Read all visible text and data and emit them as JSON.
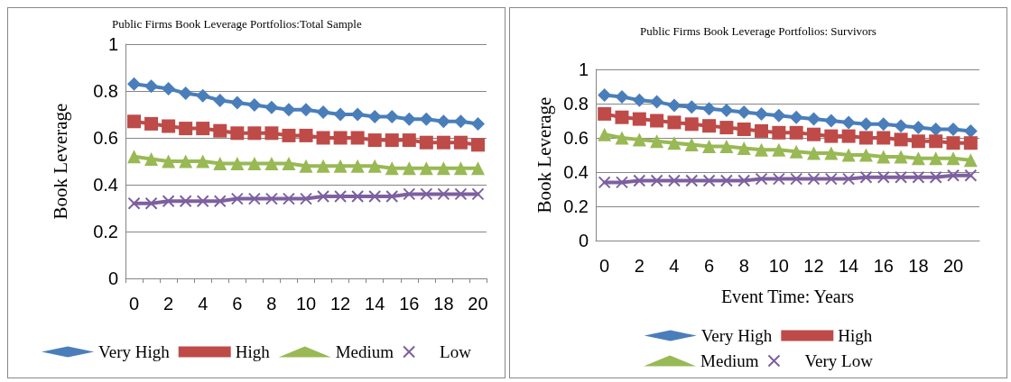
{
  "chart_data": [
    {
      "type": "line",
      "title": "Public Firms Book Leverage Portfolios:Total Sample",
      "ylabel": "Book Leverage",
      "categories": [
        "0",
        null,
        "2",
        null,
        "4",
        null,
        "6",
        null,
        "8",
        null,
        "10",
        null,
        "12",
        null,
        "14",
        null,
        "16",
        null,
        "18",
        null,
        "20"
      ],
      "ylim": [
        0,
        1
      ],
      "yticks": [
        0,
        0.2,
        0.4,
        0.6,
        0.8,
        1
      ],
      "grid": "y",
      "legend": "bottom",
      "series": [
        {
          "name": "Very High",
          "color": "#4a7ebb",
          "marker": "diamond",
          "values": [
            0.83,
            0.82,
            0.81,
            0.79,
            0.78,
            0.76,
            0.75,
            0.74,
            0.73,
            0.72,
            0.72,
            0.71,
            0.7,
            0.7,
            0.69,
            0.69,
            0.68,
            0.68,
            0.67,
            0.67,
            0.66
          ]
        },
        {
          "name": "High",
          "color": "#be4b48",
          "marker": "square",
          "values": [
            0.67,
            0.66,
            0.65,
            0.64,
            0.64,
            0.63,
            0.62,
            0.62,
            0.62,
            0.61,
            0.61,
            0.6,
            0.6,
            0.6,
            0.59,
            0.59,
            0.59,
            0.58,
            0.58,
            0.58,
            0.57
          ]
        },
        {
          "name": "Medium",
          "color": "#98b954",
          "marker": "triangle",
          "values": [
            0.52,
            0.51,
            0.5,
            0.5,
            0.5,
            0.49,
            0.49,
            0.49,
            0.49,
            0.49,
            0.48,
            0.48,
            0.48,
            0.48,
            0.48,
            0.47,
            0.47,
            0.47,
            0.47,
            0.47,
            0.47
          ]
        },
        {
          "name": "Low",
          "color": "#7d60a0",
          "marker": "cross",
          "values": [
            0.32,
            0.32,
            0.33,
            0.33,
            0.33,
            0.33,
            0.34,
            0.34,
            0.34,
            0.34,
            0.34,
            0.35,
            0.35,
            0.35,
            0.35,
            0.35,
            0.36,
            0.36,
            0.36,
            0.36,
            0.36
          ]
        }
      ]
    },
    {
      "type": "line",
      "title": "Public Firms Book Leverage Portfolios: Survivors",
      "ylabel": "Book Leverage",
      "xlabel": "Event Time: Years",
      "categories": [
        "0",
        null,
        "2",
        null,
        "4",
        null,
        "6",
        null,
        "8",
        null,
        "10",
        null,
        "12",
        null,
        "14",
        null,
        "16",
        null,
        "18",
        null,
        "20",
        null
      ],
      "ylim": [
        0,
        1
      ],
      "yticks": [
        0,
        0.2,
        0.4,
        0.6,
        0.8,
        1
      ],
      "grid": "y",
      "legend": "bottom",
      "series": [
        {
          "name": "Very High",
          "color": "#4a7ebb",
          "marker": "diamond",
          "values": [
            0.85,
            0.84,
            0.82,
            0.81,
            0.79,
            0.78,
            0.77,
            0.76,
            0.75,
            0.74,
            0.73,
            0.72,
            0.71,
            0.7,
            0.69,
            0.68,
            0.68,
            0.67,
            0.66,
            0.65,
            0.65,
            0.64
          ]
        },
        {
          "name": "High",
          "color": "#be4b48",
          "marker": "square",
          "values": [
            0.74,
            0.72,
            0.71,
            0.7,
            0.69,
            0.68,
            0.67,
            0.66,
            0.65,
            0.64,
            0.63,
            0.63,
            0.62,
            0.61,
            0.61,
            0.6,
            0.6,
            0.59,
            0.58,
            0.58,
            0.57,
            0.57
          ]
        },
        {
          "name": "Medium",
          "color": "#98b954",
          "marker": "triangle",
          "values": [
            0.62,
            0.6,
            0.59,
            0.58,
            0.57,
            0.56,
            0.55,
            0.55,
            0.54,
            0.53,
            0.53,
            0.52,
            0.51,
            0.51,
            0.5,
            0.5,
            0.49,
            0.49,
            0.48,
            0.48,
            0.48,
            0.47
          ]
        },
        {
          "name": "Very Low",
          "color": "#7d60a0",
          "marker": "cross",
          "values": [
            0.34,
            0.34,
            0.35,
            0.35,
            0.35,
            0.35,
            0.35,
            0.35,
            0.35,
            0.36,
            0.36,
            0.36,
            0.36,
            0.36,
            0.36,
            0.37,
            0.37,
            0.37,
            0.37,
            0.37,
            0.38,
            0.38
          ]
        }
      ]
    }
  ]
}
